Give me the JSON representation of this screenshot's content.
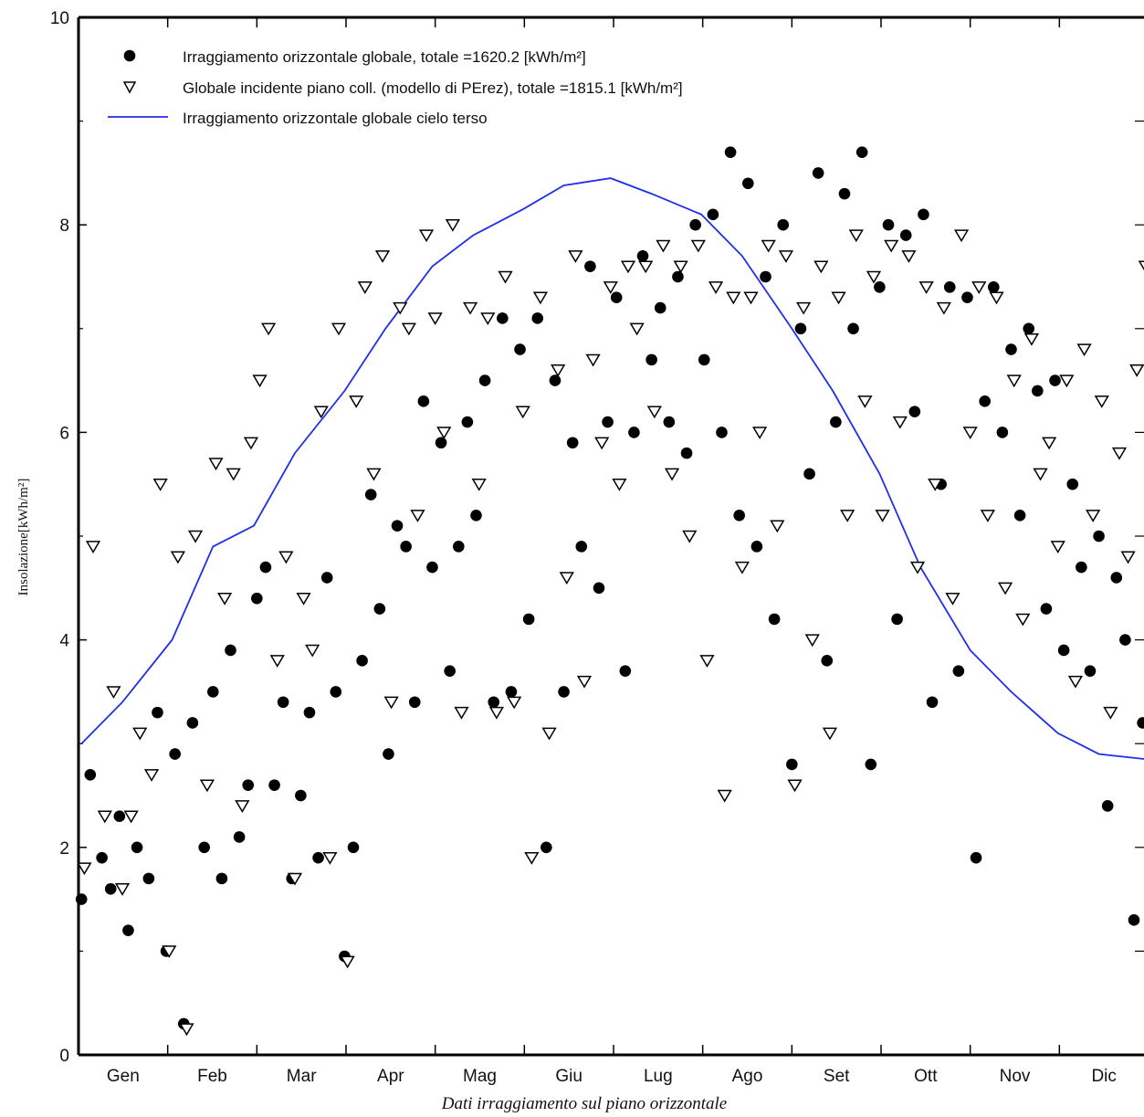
{
  "chart_data": {
    "type": "scatter",
    "title": "",
    "caption": "Dati irraggiamento sul piano orizzontale",
    "xlabel": "",
    "ylabel": "Insolazione[kWh/m²]",
    "ylim": [
      0,
      10
    ],
    "yticks": [
      "0",
      "2",
      "4",
      "6",
      "8",
      "10"
    ],
    "categories": [
      "Gen",
      "Feb",
      "Mar",
      "Apr",
      "Mag",
      "Giu",
      "Lug",
      "Ago",
      "Set",
      "Ott",
      "Nov",
      "Dic"
    ],
    "grid": false,
    "legend_position": "top-left",
    "series": [
      {
        "name": "Irraggiamento orizzontale globale, totale =1620.2 [kWh/m²]",
        "marker": "filled-circle",
        "x": [
          1,
          4,
          8,
          11,
          14,
          17,
          20,
          24,
          27,
          30,
          33,
          36,
          39,
          43,
          46,
          49,
          52,
          55,
          58,
          61,
          64,
          67,
          70,
          73,
          76,
          79,
          82,
          85,
          88,
          91,
          94,
          97,
          100,
          103,
          106,
          109,
          112,
          115,
          118,
          121,
          124,
          127,
          130,
          133,
          136,
          139,
          142,
          145,
          148,
          151,
          154,
          157,
          160,
          163,
          166,
          169,
          172,
          175,
          178,
          181,
          184,
          187,
          190,
          193,
          196,
          199,
          202,
          205,
          208,
          211,
          214,
          217,
          220,
          223,
          226,
          229,
          232,
          235,
          238,
          241,
          244,
          247,
          250,
          253,
          256,
          259,
          262,
          265,
          268,
          271,
          274,
          277,
          280,
          283,
          286,
          289,
          292,
          295,
          298,
          301,
          304,
          307,
          310,
          313,
          316,
          319,
          322,
          325,
          328,
          331,
          334,
          337,
          340,
          343,
          346,
          349,
          352,
          355,
          358,
          361,
          364
        ],
        "y": [
          1.5,
          2.7,
          1.9,
          1.6,
          2.3,
          1.2,
          2.0,
          1.7,
          3.3,
          1.0,
          2.9,
          0.3,
          3.2,
          2.0,
          3.5,
          1.7,
          3.9,
          2.1,
          2.6,
          4.4,
          4.7,
          2.6,
          3.4,
          1.7,
          2.5,
          3.3,
          1.9,
          4.6,
          3.5,
          0.95,
          2.0,
          3.8,
          5.4,
          4.3,
          2.9,
          5.1,
          4.9,
          3.4,
          6.3,
          4.7,
          5.9,
          3.7,
          4.9,
          6.1,
          5.2,
          6.5,
          3.4,
          7.1,
          3.5,
          6.8,
          4.2,
          7.1,
          2.0,
          6.5,
          3.5,
          5.9,
          4.9,
          7.6,
          4.5,
          6.1,
          7.3,
          3.7,
          6.0,
          7.7,
          6.7,
          7.2,
          6.1,
          7.5,
          5.8,
          8.0,
          6.7,
          8.1,
          6.0,
          8.7,
          5.2,
          8.4,
          4.9,
          7.5,
          4.2,
          8.0,
          2.8,
          7.0,
          5.6,
          8.5,
          3.8,
          6.1,
          8.3,
          7.0,
          8.7,
          2.8,
          7.4,
          8.0,
          4.2,
          7.9,
          6.2,
          8.1,
          3.4,
          5.5,
          7.4,
          3.7,
          7.3,
          1.9,
          6.3,
          7.4,
          6.0,
          6.8,
          5.2,
          7.0,
          6.4,
          4.3,
          6.5,
          3.9,
          5.5,
          4.7,
          3.7,
          5.0,
          2.4,
          4.6,
          4.0,
          1.3,
          3.2
        ]
      },
      {
        "name": "Globale incidente piano coll. (modello di PErez), totale =1815.1 [kWh/m²]",
        "marker": "open-triangle-down",
        "x": [
          2,
          5,
          9,
          12,
          15,
          18,
          21,
          25,
          28,
          31,
          34,
          37,
          40,
          44,
          47,
          50,
          53,
          56,
          59,
          62,
          65,
          68,
          71,
          74,
          77,
          80,
          83,
          86,
          89,
          92,
          95,
          98,
          101,
          104,
          107,
          110,
          113,
          116,
          119,
          122,
          125,
          128,
          131,
          134,
          137,
          140,
          143,
          146,
          149,
          152,
          155,
          158,
          161,
          164,
          167,
          170,
          173,
          176,
          179,
          182,
          185,
          188,
          191,
          194,
          197,
          200,
          203,
          206,
          209,
          212,
          215,
          218,
          221,
          224,
          227,
          230,
          233,
          236,
          239,
          242,
          245,
          248,
          251,
          254,
          257,
          260,
          263,
          266,
          269,
          272,
          275,
          278,
          281,
          284,
          287,
          290,
          293,
          296,
          299,
          302,
          305,
          308,
          311,
          314,
          317,
          320,
          323,
          326,
          329,
          332,
          335,
          338,
          341,
          344,
          347,
          350,
          353,
          356,
          359,
          362,
          365
        ],
        "y": [
          1.8,
          4.9,
          2.3,
          3.5,
          1.6,
          2.3,
          3.1,
          2.7,
          5.5,
          1.0,
          4.8,
          0.25,
          5.0,
          2.6,
          5.7,
          4.4,
          5.6,
          2.4,
          5.9,
          6.5,
          7.0,
          3.8,
          4.8,
          1.7,
          4.4,
          3.9,
          6.2,
          1.9,
          7.0,
          0.9,
          6.3,
          7.4,
          5.6,
          7.7,
          3.4,
          7.2,
          7.0,
          5.2,
          7.9,
          7.1,
          6.0,
          8.0,
          3.3,
          7.2,
          5.5,
          7.1,
          3.3,
          7.5,
          3.4,
          6.2,
          1.9,
          7.3,
          3.1,
          6.6,
          4.6,
          7.7,
          3.6,
          6.7,
          5.9,
          7.4,
          5.5,
          7.6,
          7.0,
          7.6,
          6.2,
          7.8,
          5.6,
          7.6,
          5.0,
          7.8,
          3.8,
          7.4,
          2.5,
          7.3,
          4.7,
          7.3,
          6.0,
          7.8,
          5.1,
          7.7,
          2.6,
          7.2,
          4.0,
          7.6,
          3.1,
          7.3,
          5.2,
          7.9,
          6.3,
          7.5,
          5.2,
          7.8,
          6.1,
          7.7,
          4.7,
          7.4,
          5.5,
          7.2,
          4.4,
          7.9,
          6.0,
          7.4,
          5.2,
          7.3,
          4.5,
          6.5,
          4.2,
          6.9,
          5.6,
          5.9,
          4.9,
          6.5,
          3.6,
          6.8,
          5.2,
          6.3,
          3.3,
          5.8,
          4.8,
          6.6,
          7.6
        ]
      },
      {
        "name": "Irraggiamento orizzontale globale cielo terso",
        "marker": "line",
        "color": "#1f2fe8",
        "x": [
          1,
          15,
          32,
          46,
          60,
          74,
          91,
          105,
          121,
          135,
          152,
          166,
          182,
          196,
          213,
          227,
          244,
          258,
          274,
          288,
          305,
          319,
          335,
          349,
          365
        ],
        "y": [
          3.0,
          3.4,
          4.0,
          4.9,
          5.1,
          5.8,
          6.4,
          7.0,
          7.6,
          7.9,
          8.15,
          8.38,
          8.45,
          8.3,
          8.1,
          7.7,
          7.0,
          6.4,
          5.6,
          4.7,
          3.9,
          3.5,
          3.1,
          2.9,
          2.85
        ]
      }
    ]
  }
}
